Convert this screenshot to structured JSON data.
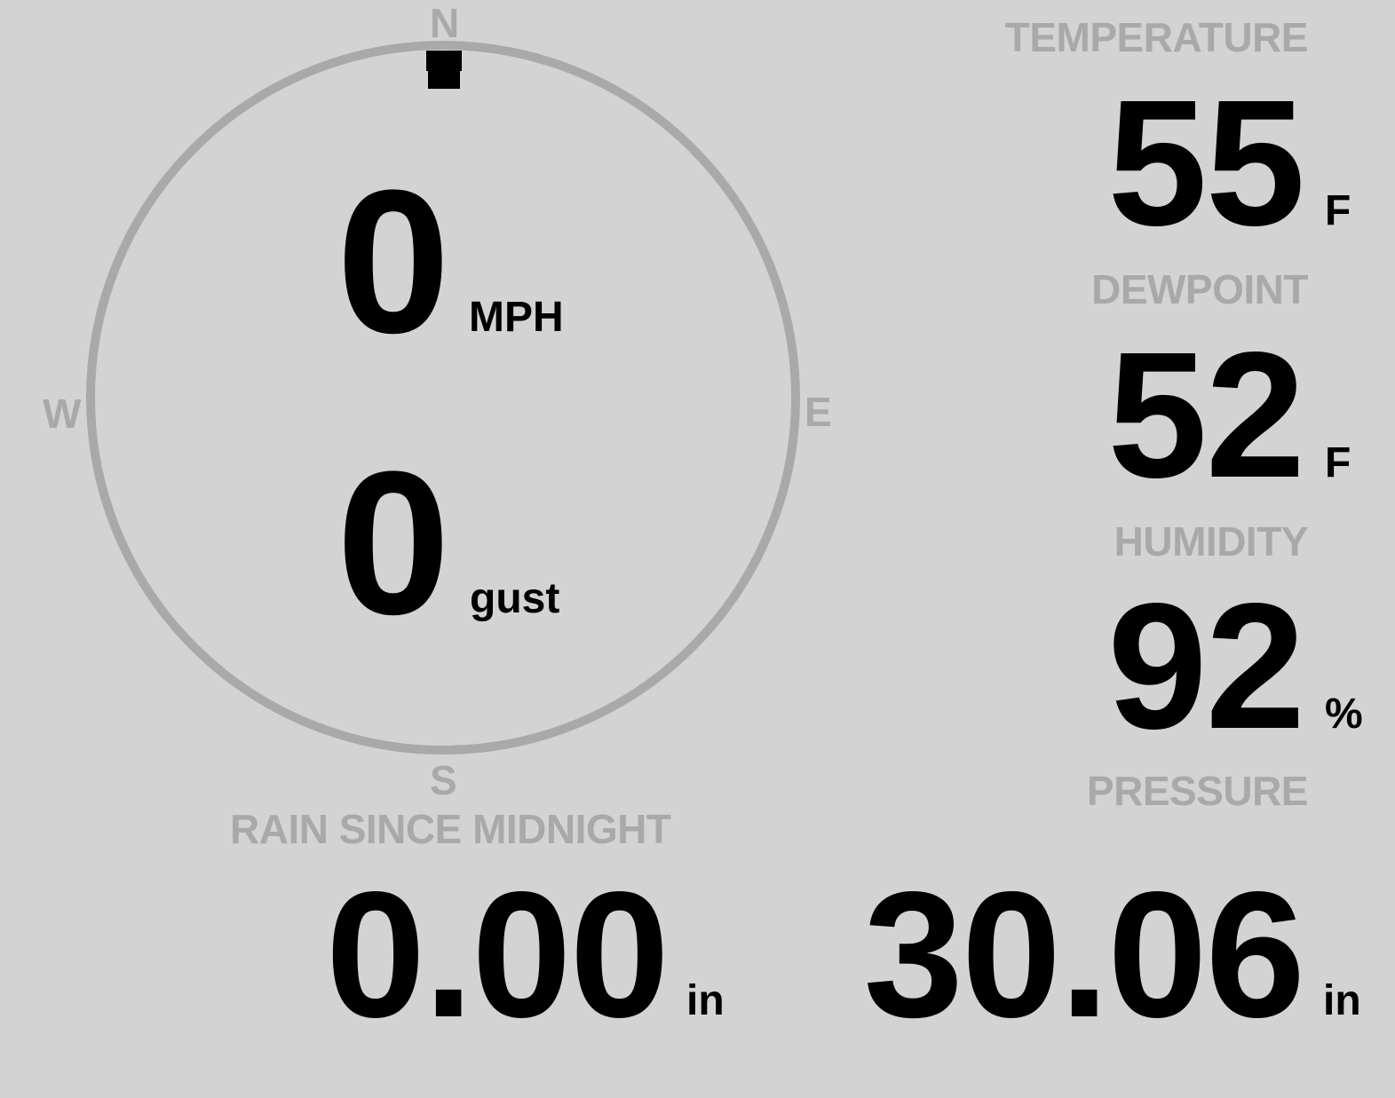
{
  "colors": {
    "background": "#d3d3d3",
    "label": "#a9a9a9",
    "value": "#000000",
    "needle": "#000000"
  },
  "wind": {
    "compass": {
      "n": "N",
      "e": "E",
      "s": "S",
      "w": "W"
    },
    "direction_deg": 0,
    "speed": {
      "value": "0",
      "unit": "MPH"
    },
    "gust": {
      "value": "0",
      "unit": "gust"
    }
  },
  "temperature": {
    "label": "TEMPERATURE",
    "value": "55",
    "unit": "F"
  },
  "dewpoint": {
    "label": "DEWPOINT",
    "value": "52",
    "unit": "F"
  },
  "humidity": {
    "label": "HUMIDITY",
    "value": "92",
    "unit": "%"
  },
  "rain": {
    "label": "RAIN SINCE MIDNIGHT",
    "value": "0.00",
    "unit": "in"
  },
  "pressure": {
    "label": "PRESSURE",
    "value": "30.06",
    "unit": "in"
  }
}
